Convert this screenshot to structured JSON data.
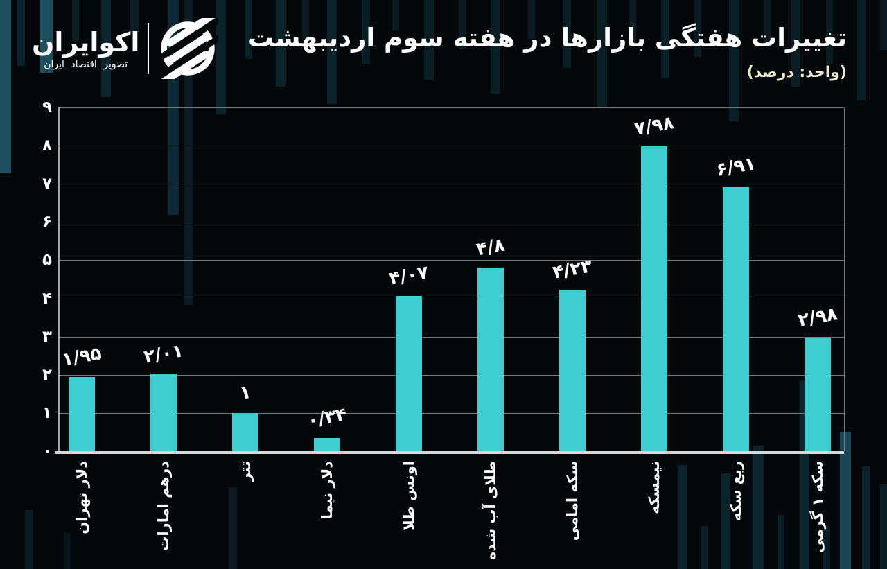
{
  "header": {
    "logo": {
      "name": "اکوایران",
      "tagline": "تصویر اقتصاد ایران"
    },
    "title": "تغییرات هفتگی بازارها در هفته سوم اردیبهشت",
    "subtitle": "(واحد: درصد)"
  },
  "chart_data": {
    "type": "bar",
    "title": "تغییرات هفتگی بازارها در هفته سوم اردیبهشت",
    "unit_label": "(واحد: درصد)",
    "categories": [
      "دلار تهران",
      "درهم امارات",
      "تتر",
      "دلار نیما",
      "اونس طلا",
      "طلای آب شده",
      "سکه امامی",
      "نیمسکه",
      "ربع سکه",
      "سکه ۱ گرمی"
    ],
    "values": [
      1.95,
      2.01,
      1,
      0.34,
      4.07,
      4.8,
      4.23,
      7.98,
      6.91,
      2.98
    ],
    "value_labels": [
      "۱/۹۵",
      "۲/۰۱",
      "۱",
      "۰/۳۴",
      "۴/۰۷",
      "۴/۸",
      "۴/۲۳",
      "۷/۹۸",
      "۶/۹۱",
      "۲/۹۸"
    ],
    "ytick_labels": [
      "۰",
      "۱",
      "۲",
      "۳",
      "۴",
      "۵",
      "۶",
      "۷",
      "۸",
      "۹"
    ],
    "ylim": [
      0,
      9
    ],
    "grid": "horizontal",
    "legend": "none",
    "xlabel": "",
    "ylabel": ""
  },
  "colors": {
    "background": "#04080a",
    "bar": "#3eced2",
    "grid": "#787878",
    "axis": "#d6d6d6",
    "title": "#ffffff",
    "subtitle": "#f2ebd4",
    "backdrop_bar": "#0f2d38",
    "backdrop_bar_bright": "#1d4f5e"
  }
}
